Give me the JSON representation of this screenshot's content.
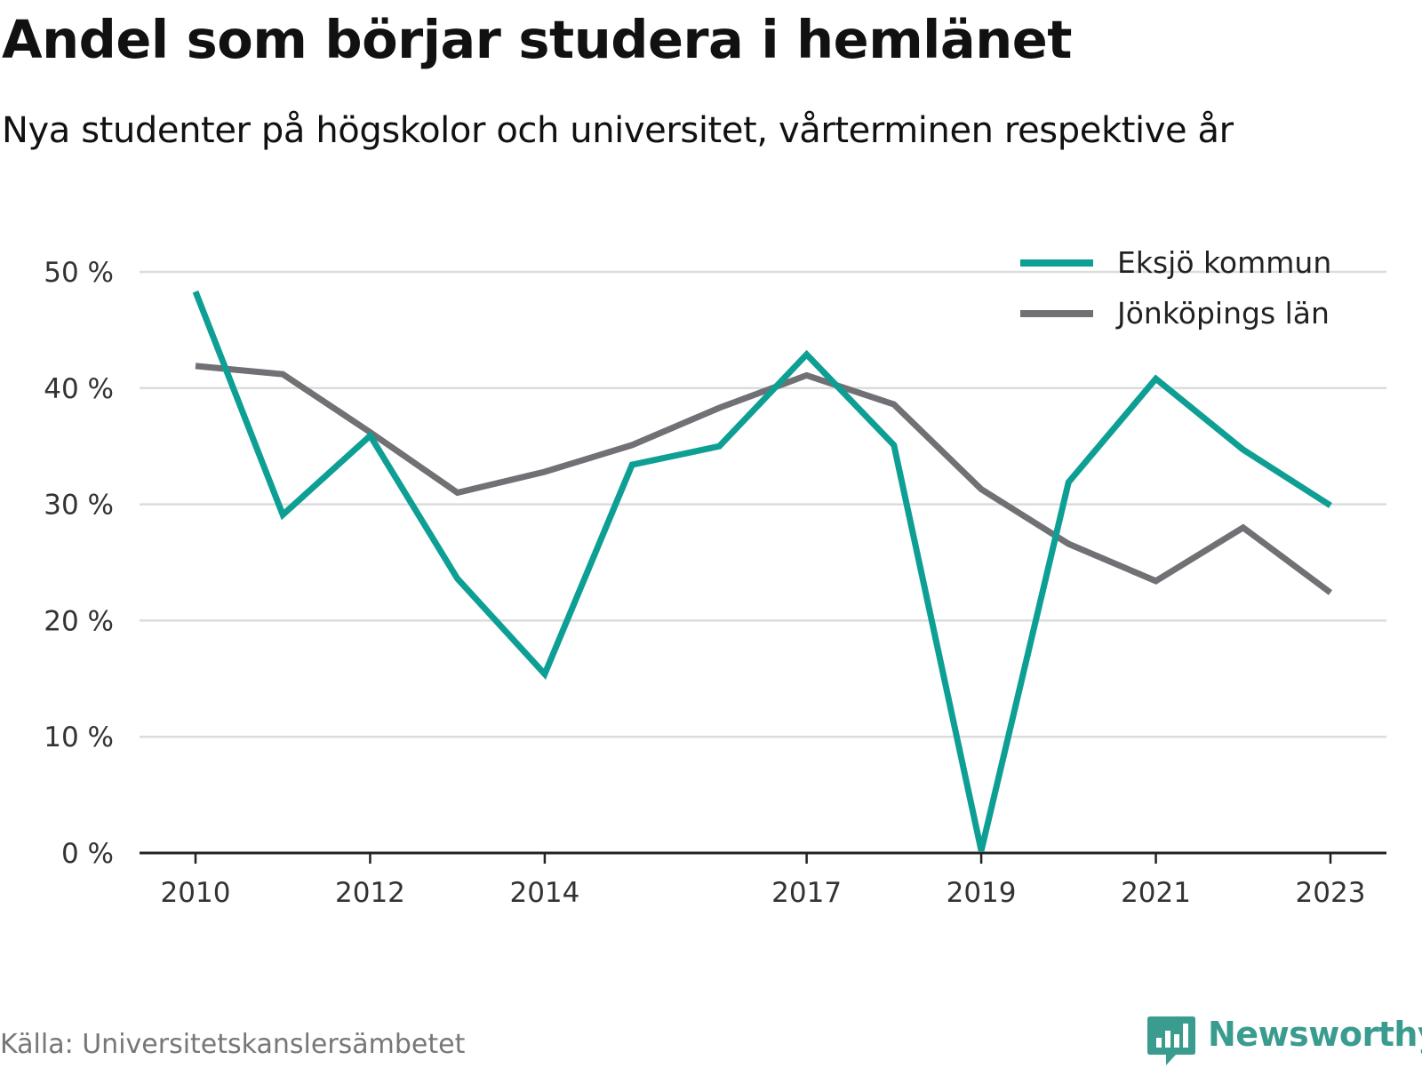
{
  "title": "Andel som börjar studera i hemlänet",
  "subtitle": "Nya studenter på högskolor och universitet, vårterminen respektive år",
  "source": "Källa: Universitetskanslersämbetet",
  "brand": {
    "name": "Newsworthy",
    "color": "#3a9c8e",
    "icon": "newsworthy-chart-icon"
  },
  "chart_data": {
    "type": "line",
    "title": "Andel som börjar studera i hemlänet",
    "subtitle": "Nya studenter på högskolor och universitet, vårterminen respektive år",
    "xlabel": "",
    "ylabel": "",
    "x": [
      2010,
      2011,
      2012,
      2013,
      2014,
      2015,
      2016,
      2017,
      2018,
      2019,
      2020,
      2021,
      2022,
      2023
    ],
    "x_ticks": [
      2010,
      2012,
      2014,
      2017,
      2019,
      2021,
      2023
    ],
    "x_tick_labels": [
      "2010",
      "2012",
      "2014",
      "2017",
      "2019",
      "2021",
      "2023"
    ],
    "ylim": [
      0,
      50
    ],
    "y_ticks": [
      0,
      10,
      20,
      30,
      40,
      50
    ],
    "y_tick_labels": [
      "0 %",
      "10 %",
      "20 %",
      "30 %",
      "40 %",
      "50 %"
    ],
    "grid": true,
    "legend_position": "top-right",
    "series": [
      {
        "name": "Eksjö kommun",
        "color": "#0e9f94",
        "values": [
          48.3,
          29.1,
          35.9,
          23.6,
          15.4,
          33.4,
          35.0,
          42.9,
          35.1,
          0.2,
          31.9,
          40.8,
          34.7,
          29.9
        ]
      },
      {
        "name": "Jönköpings län",
        "color": "#707075",
        "values": [
          41.9,
          41.2,
          36.2,
          31.0,
          32.8,
          35.1,
          38.3,
          41.1,
          38.6,
          31.3,
          26.6,
          23.4,
          28.0,
          22.4
        ]
      }
    ]
  }
}
